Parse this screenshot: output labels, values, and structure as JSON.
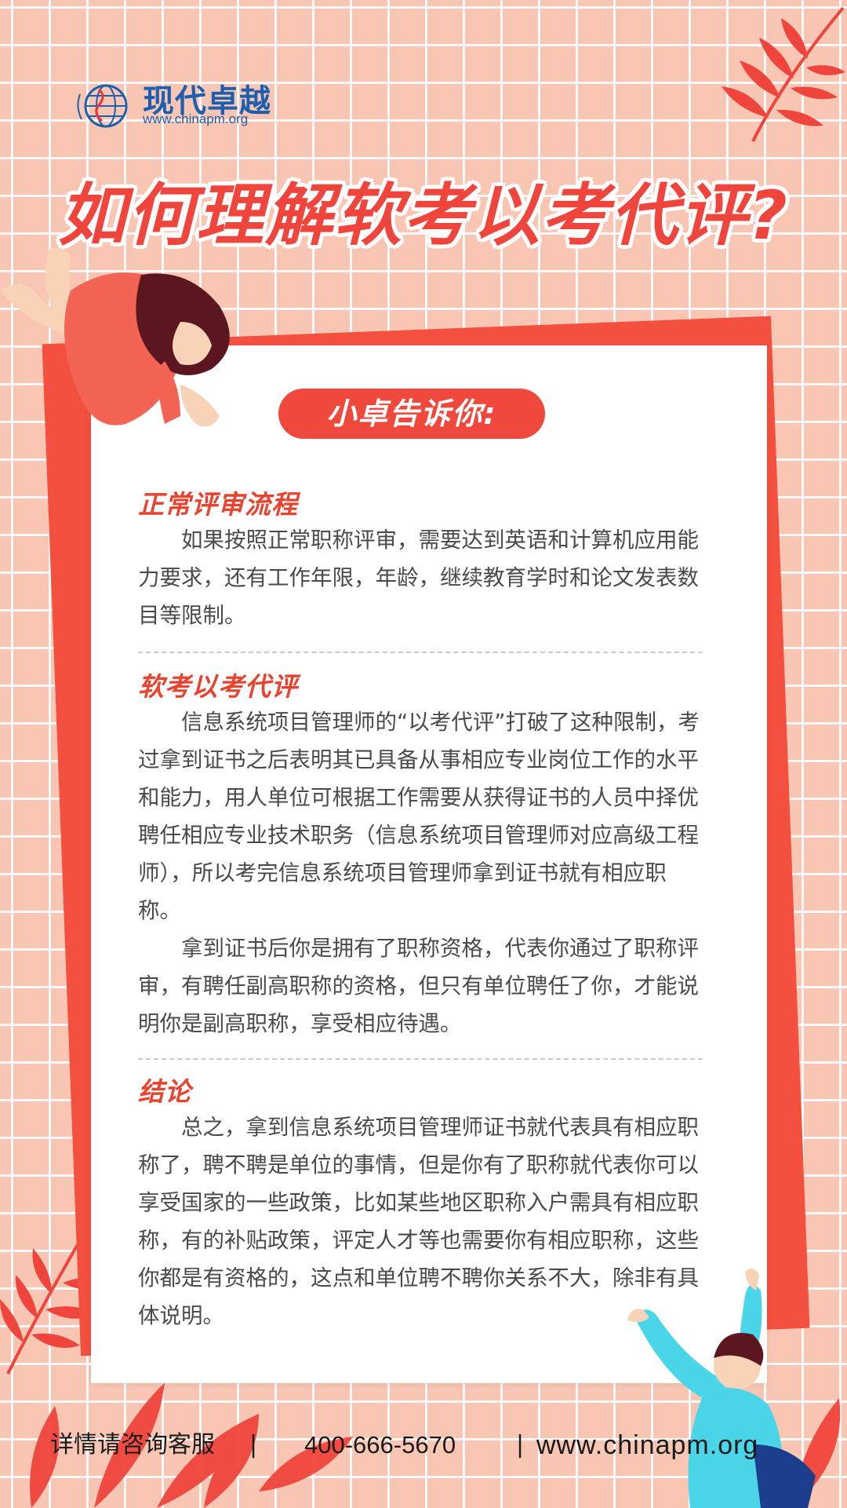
{
  "logo": {
    "name": "现代卓越",
    "url": "www.chinapm.org"
  },
  "title": "如何理解软考以考代评?",
  "badge": "小卓告诉你:",
  "sections": [
    {
      "heading": "正常评审流程",
      "paragraphs": [
        "如果按照正常职称评审，需要达到英语和计算机应用能力要求，还有工作年限，年龄，继续教育学时和论文发表数目等限制。"
      ]
    },
    {
      "heading": "软考以考代评",
      "paragraphs": [
        "信息系统项目管理师的“以考代评”打破了这种限制，考过拿到证书之后表明其已具备从事相应专业岗位工作的水平和能力，用人单位可根据工作需要从获得证书的人员中择优聘任相应专业技术职务（信息系统项目管理师对应高级工程师），所以考完信息系统项目管理师拿到证书就有相应职称。",
        "拿到证书后你是拥有了职称资格，代表你通过了职称评审，有聘任副高职称的资格，但只有单位聘任了你，才能说明你是副高职称，享受相应待遇。"
      ]
    },
    {
      "heading": "结论",
      "paragraphs": [
        "总之，拿到信息系统项目管理师证书就代表具有相应职称了，聘不聘是单位的事情，但是你有了职称就代表你可以享受国家的一些政策，比如某些地区职称入户需具有相应职称，有的补贴政策，评定人才等也需要你有相应职称，这些你都是有资格的，这点和单位聘不聘你关系不大，除非有具体说明。"
      ]
    }
  ],
  "footer": {
    "consult": "详情请咨询客服",
    "separator": "|",
    "phone": "400-666-5670",
    "url": "www.chinapm.org"
  },
  "colors": {
    "background": "#f9c6b3",
    "accent": "#f0453c",
    "logo_blue": "#1d5fae"
  }
}
